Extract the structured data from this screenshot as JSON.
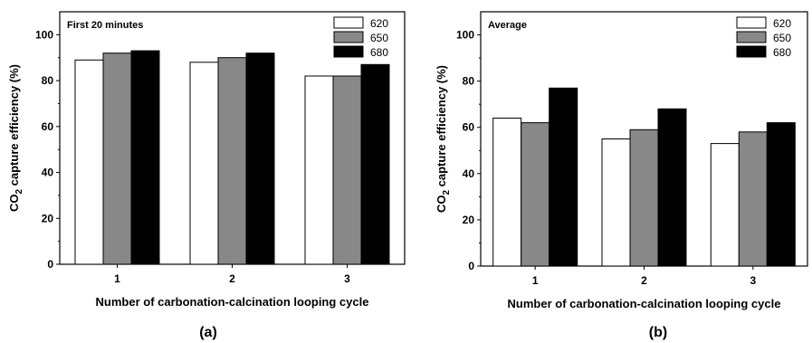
{
  "chart_data": [
    {
      "type": "bar",
      "panel_label": "(a)",
      "annotation": "First 20 minutes",
      "categories": [
        "1",
        "2",
        "3"
      ],
      "series": [
        {
          "name": "620",
          "color": "#ffffff",
          "values": [
            89,
            88,
            82
          ]
        },
        {
          "name": "650",
          "color": "#888888",
          "values": [
            92,
            90,
            82
          ]
        },
        {
          "name": "680",
          "color": "#000000",
          "values": [
            93,
            92,
            87
          ]
        }
      ],
      "xlabel": "Number of carbonation-calcination looping cycle",
      "ylabel": "CO2 capture efficiency (%)",
      "ylabel_parts": {
        "pre": "CO",
        "sub": "2",
        "post": " capture efficiency (%)"
      },
      "ylim": [
        0,
        110
      ],
      "yticks": [
        0,
        20,
        40,
        60,
        80,
        100
      ],
      "legend": "top-right"
    },
    {
      "type": "bar",
      "panel_label": "(b)",
      "annotation": "Average",
      "categories": [
        "1",
        "2",
        "3"
      ],
      "series": [
        {
          "name": "620",
          "color": "#ffffff",
          "values": [
            64,
            55,
            53
          ]
        },
        {
          "name": "650",
          "color": "#888888",
          "values": [
            62,
            59,
            58
          ]
        },
        {
          "name": "680",
          "color": "#000000",
          "values": [
            77,
            68,
            62
          ]
        }
      ],
      "xlabel": "Number of carbonation-calcination looping cycle",
      "ylabel": "CO2 capture efficiency (%)",
      "ylabel_parts": {
        "pre": "CO",
        "sub": "2",
        "post": " capture efficiency (%)"
      },
      "ylim": [
        0,
        110
      ],
      "yticks": [
        0,
        20,
        40,
        60,
        80,
        100
      ],
      "legend": "top-right"
    }
  ]
}
